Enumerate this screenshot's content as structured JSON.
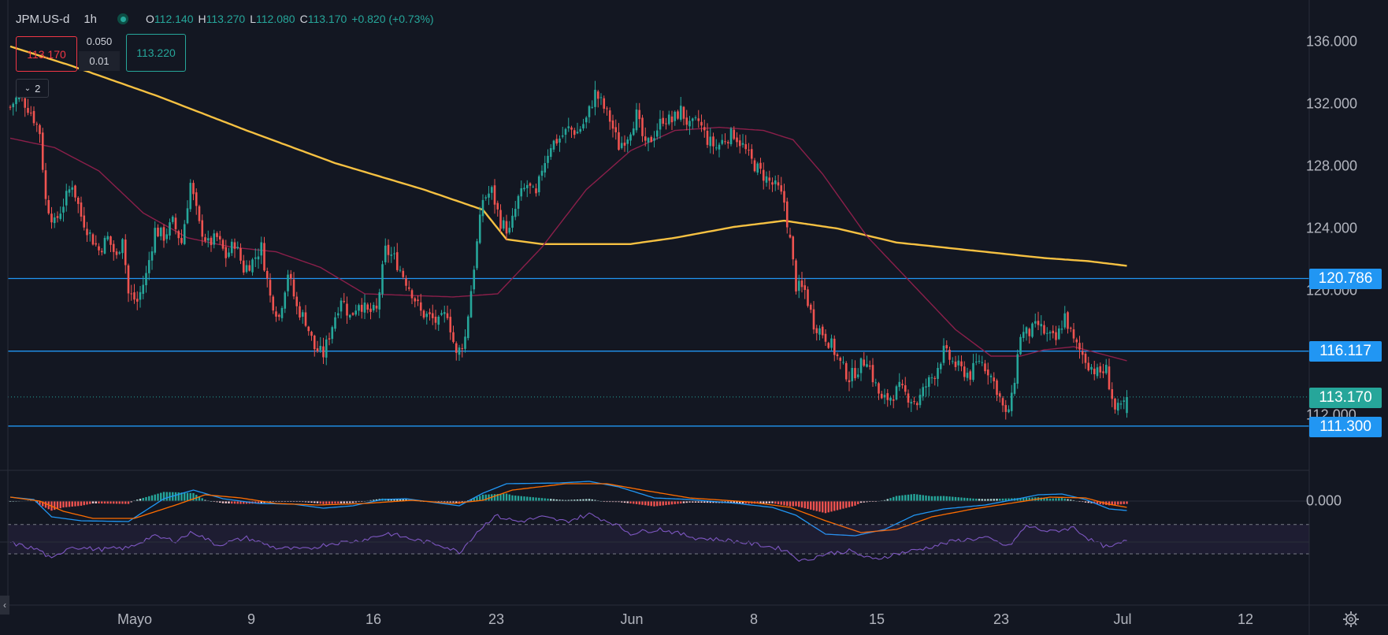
{
  "header": {
    "symbol": "JPM.US-d",
    "timeframe": "1h",
    "ohlc": [
      {
        "k": "O",
        "v": "112.140"
      },
      {
        "k": "H",
        "v": "113.270"
      },
      {
        "k": "L",
        "v": "112.080"
      },
      {
        "k": "C",
        "v": "113.170"
      }
    ],
    "change": "+0.820 (+0.73%)"
  },
  "trade_panel": {
    "sell": "113.170",
    "spread": "0.050",
    "lot": "0.01",
    "buy": "113.220"
  },
  "indicator_toggle": "2",
  "colors": {
    "up": "#26a69a",
    "down": "#ef5350",
    "ma200": "#f6c142",
    "ma50": "#8b1f4a",
    "hline": "#2196f3",
    "macd": "#2196f3",
    "signal": "#ff6d00",
    "rsi": "#7e57c2",
    "bg": "#131722"
  },
  "price_axis": [
    "136.000",
    "132.000",
    "128.000",
    "124.000",
    "120.000",
    "112.000"
  ],
  "level_tags": [
    {
      "label": "120.786",
      "value": 120.786,
      "color": "#2196f3"
    },
    {
      "label": "116.117",
      "value": 116.117,
      "color": "#2196f3"
    },
    {
      "label": "113.170",
      "value": 113.17,
      "color": "#26a69a"
    },
    {
      "label": "111.300",
      "value": 111.3,
      "color": "#2196f3"
    }
  ],
  "macd_axis": "0.000",
  "time_axis": [
    "Mayo",
    "9",
    "16",
    "23",
    "Jun",
    "8",
    "15",
    "23",
    "Jul",
    "12"
  ],
  "chart_data": {
    "type": "candlestick",
    "ylim": [
      108,
      138
    ],
    "horizontal_lines": [
      120.786,
      116.117,
      111.3
    ],
    "last_price": 113.17,
    "close_path": [
      [
        0,
        131.8
      ],
      [
        3,
        132.6
      ],
      [
        7,
        131.5
      ],
      [
        10,
        130.2
      ],
      [
        12,
        125.8
      ],
      [
        15,
        124.3
      ],
      [
        18,
        125.6
      ],
      [
        21,
        126.9
      ],
      [
        24,
        124.8
      ],
      [
        27,
        123.6
      ],
      [
        30,
        122.6
      ],
      [
        33,
        123.4
      ],
      [
        36,
        122.1
      ],
      [
        38,
        123.6
      ],
      [
        40,
        119.8
      ],
      [
        43,
        119.3
      ],
      [
        46,
        121.0
      ],
      [
        49,
        123.9
      ],
      [
        52,
        123.5
      ],
      [
        55,
        124.4
      ],
      [
        58,
        123.1
      ],
      [
        61,
        126.9
      ],
      [
        64,
        124.2
      ],
      [
        67,
        123.0
      ],
      [
        70,
        123.4
      ],
      [
        73,
        122.2
      ],
      [
        76,
        123.1
      ],
      [
        79,
        121.4
      ],
      [
        82,
        121.9
      ],
      [
        85,
        122.8
      ],
      [
        88,
        119.6
      ],
      [
        91,
        118.3
      ],
      [
        94,
        121.2
      ],
      [
        97,
        118.9
      ],
      [
        100,
        118.1
      ],
      [
        103,
        116.3
      ],
      [
        106,
        115.9
      ],
      [
        109,
        117.8
      ],
      [
        112,
        119.6
      ],
      [
        115,
        118.3
      ],
      [
        118,
        119.3
      ],
      [
        121,
        118.6
      ],
      [
        124,
        118.7
      ],
      [
        127,
        122.6
      ],
      [
        130,
        122.1
      ],
      [
        133,
        121.0
      ],
      [
        136,
        119.9
      ],
      [
        139,
        118.6
      ],
      [
        142,
        118.3
      ],
      [
        145,
        117.9
      ],
      [
        148,
        118.6
      ],
      [
        151,
        115.8
      ],
      [
        154,
        117.0
      ],
      [
        157,
        121.6
      ],
      [
        160,
        125.9
      ],
      [
        163,
        126.4
      ],
      [
        166,
        124.4
      ],
      [
        169,
        123.8
      ],
      [
        172,
        125.9
      ],
      [
        175,
        126.8
      ],
      [
        178,
        126.0
      ],
      [
        180,
        127.9
      ],
      [
        183,
        129.4
      ],
      [
        186,
        129.8
      ],
      [
        189,
        130.4
      ],
      [
        192,
        130.2
      ],
      [
        195,
        131.0
      ],
      [
        198,
        132.7
      ],
      [
        200,
        132.1
      ],
      [
        203,
        131.0
      ],
      [
        206,
        129.3
      ],
      [
        209,
        130.0
      ],
      [
        212,
        131.3
      ],
      [
        215,
        129.2
      ],
      [
        218,
        130.1
      ],
      [
        221,
        131.1
      ],
      [
        224,
        130.9
      ],
      [
        227,
        131.6
      ],
      [
        230,
        130.5
      ],
      [
        233,
        130.9
      ],
      [
        236,
        129.7
      ],
      [
        239,
        129.2
      ],
      [
        242,
        129.8
      ],
      [
        245,
        130.1
      ],
      [
        248,
        129.3
      ],
      [
        251,
        128.3
      ],
      [
        254,
        127.6
      ],
      [
        257,
        127.0
      ],
      [
        260,
        126.5
      ],
      [
        262,
        125.7
      ],
      [
        264,
        123.2
      ],
      [
        266,
        120.3
      ],
      [
        269,
        120.0
      ],
      [
        272,
        117.9
      ],
      [
        275,
        117.3
      ],
      [
        278,
        116.5
      ],
      [
        281,
        115.3
      ],
      [
        284,
        114.4
      ],
      [
        287,
        115.0
      ],
      [
        290,
        115.7
      ],
      [
        292,
        114.4
      ],
      [
        295,
        112.9
      ],
      [
        298,
        113.2
      ],
      [
        301,
        113.7
      ],
      [
        304,
        113.2
      ],
      [
        307,
        112.8
      ],
      [
        310,
        113.9
      ],
      [
        313,
        114.7
      ],
      [
        316,
        116.1
      ],
      [
        319,
        115.4
      ],
      [
        322,
        114.9
      ],
      [
        325,
        114.6
      ],
      [
        328,
        115.6
      ],
      [
        331,
        114.9
      ],
      [
        334,
        113.7
      ],
      [
        337,
        111.9
      ],
      [
        339,
        113.0
      ],
      [
        342,
        117.2
      ],
      [
        345,
        117.3
      ],
      [
        348,
        117.8
      ],
      [
        351,
        117.1
      ],
      [
        354,
        116.8
      ],
      [
        357,
        118.4
      ],
      [
        360,
        116.7
      ],
      [
        363,
        115.9
      ],
      [
        365,
        115.3
      ],
      [
        368,
        114.7
      ],
      [
        371,
        114.9
      ],
      [
        374,
        112.3
      ],
      [
        376,
        112.4
      ],
      [
        378,
        113.17
      ]
    ],
    "ma200_path": [
      [
        0,
        135.7
      ],
      [
        20,
        134.5
      ],
      [
        50,
        132.5
      ],
      [
        80,
        130.3
      ],
      [
        110,
        128.2
      ],
      [
        140,
        126.5
      ],
      [
        160,
        125.2
      ],
      [
        168,
        123.3
      ],
      [
        180,
        123.0
      ],
      [
        210,
        123.0
      ],
      [
        225,
        123.4
      ],
      [
        245,
        124.1
      ],
      [
        262,
        124.5
      ],
      [
        280,
        124.0
      ],
      [
        300,
        123.1
      ],
      [
        330,
        122.5
      ],
      [
        350,
        122.1
      ],
      [
        365,
        121.9
      ],
      [
        378,
        121.6
      ]
    ],
    "ma50_path": [
      [
        0,
        129.8
      ],
      [
        15,
        129.2
      ],
      [
        30,
        127.7
      ],
      [
        45,
        125.0
      ],
      [
        60,
        123.4
      ],
      [
        75,
        122.8
      ],
      [
        90,
        122.5
      ],
      [
        105,
        121.5
      ],
      [
        120,
        119.8
      ],
      [
        135,
        119.7
      ],
      [
        150,
        119.6
      ],
      [
        165,
        119.8
      ],
      [
        180,
        122.8
      ],
      [
        195,
        126.5
      ],
      [
        210,
        129.0
      ],
      [
        225,
        130.3
      ],
      [
        240,
        130.5
      ],
      [
        255,
        130.3
      ],
      [
        265,
        129.7
      ],
      [
        275,
        127.5
      ],
      [
        290,
        123.5
      ],
      [
        305,
        120.5
      ],
      [
        320,
        117.5
      ],
      [
        332,
        115.8
      ],
      [
        342,
        115.8
      ],
      [
        350,
        116.2
      ],
      [
        360,
        116.4
      ],
      [
        368,
        116.0
      ],
      [
        378,
        115.5
      ]
    ],
    "macd_path": [
      [
        0,
        0.05
      ],
      [
        8,
        0.02
      ],
      [
        14,
        -0.2
      ],
      [
        24,
        -0.25
      ],
      [
        40,
        -0.26
      ],
      [
        52,
        0.03
      ],
      [
        62,
        0.14
      ],
      [
        72,
        0.03
      ],
      [
        84,
        -0.03
      ],
      [
        96,
        -0.04
      ],
      [
        106,
        -0.09
      ],
      [
        116,
        -0.06
      ],
      [
        126,
        0.02
      ],
      [
        134,
        0.03
      ],
      [
        144,
        -0.02
      ],
      [
        152,
        -0.06
      ],
      [
        160,
        0.1
      ],
      [
        168,
        0.22
      ],
      [
        186,
        0.23
      ],
      [
        196,
        0.25
      ],
      [
        206,
        0.18
      ],
      [
        218,
        0.04
      ],
      [
        230,
        0.02
      ],
      [
        246,
        -0.03
      ],
      [
        258,
        -0.08
      ],
      [
        266,
        -0.18
      ],
      [
        276,
        -0.42
      ],
      [
        286,
        -0.44
      ],
      [
        296,
        -0.36
      ],
      [
        306,
        -0.18
      ],
      [
        316,
        -0.1
      ],
      [
        330,
        -0.05
      ],
      [
        340,
        0.02
      ],
      [
        348,
        0.08
      ],
      [
        356,
        0.09
      ],
      [
        364,
        0.02
      ],
      [
        372,
        -0.1
      ],
      [
        378,
        -0.12
      ]
    ],
    "signal_path": [
      [
        0,
        0.05
      ],
      [
        10,
        0.0
      ],
      [
        18,
        -0.13
      ],
      [
        28,
        -0.22
      ],
      [
        42,
        -0.22
      ],
      [
        56,
        -0.05
      ],
      [
        66,
        0.08
      ],
      [
        78,
        0.04
      ],
      [
        90,
        -0.03
      ],
      [
        104,
        -0.05
      ],
      [
        120,
        -0.03
      ],
      [
        136,
        0.01
      ],
      [
        150,
        -0.03
      ],
      [
        160,
        0.01
      ],
      [
        170,
        0.14
      ],
      [
        188,
        0.22
      ],
      [
        202,
        0.22
      ],
      [
        214,
        0.14
      ],
      [
        230,
        0.04
      ],
      [
        250,
        -0.01
      ],
      [
        264,
        -0.08
      ],
      [
        276,
        -0.25
      ],
      [
        288,
        -0.4
      ],
      [
        300,
        -0.36
      ],
      [
        312,
        -0.2
      ],
      [
        326,
        -0.1
      ],
      [
        340,
        -0.02
      ],
      [
        352,
        0.05
      ],
      [
        364,
        0.04
      ],
      [
        372,
        -0.04
      ],
      [
        378,
        -0.08
      ]
    ],
    "rsi_path": [
      [
        0,
        45
      ],
      [
        10,
        35
      ],
      [
        14,
        22
      ],
      [
        20,
        40
      ],
      [
        30,
        36
      ],
      [
        40,
        38
      ],
      [
        48,
        54
      ],
      [
        56,
        48
      ],
      [
        62,
        60
      ],
      [
        70,
        42
      ],
      [
        80,
        52
      ],
      [
        90,
        38
      ],
      [
        100,
        36
      ],
      [
        108,
        44
      ],
      [
        118,
        48
      ],
      [
        128,
        58
      ],
      [
        136,
        50
      ],
      [
        146,
        42
      ],
      [
        152,
        32
      ],
      [
        158,
        60
      ],
      [
        164,
        82
      ],
      [
        172,
        74
      ],
      [
        180,
        80
      ],
      [
        188,
        74
      ],
      [
        196,
        84
      ],
      [
        204,
        72
      ],
      [
        210,
        58
      ],
      [
        220,
        64
      ],
      [
        232,
        52
      ],
      [
        244,
        48
      ],
      [
        254,
        42
      ],
      [
        262,
        36
      ],
      [
        268,
        20
      ],
      [
        276,
        30
      ],
      [
        284,
        34
      ],
      [
        292,
        22
      ],
      [
        300,
        30
      ],
      [
        310,
        38
      ],
      [
        320,
        48
      ],
      [
        330,
        52
      ],
      [
        338,
        40
      ],
      [
        344,
        68
      ],
      [
        352,
        60
      ],
      [
        360,
        66
      ],
      [
        366,
        48
      ],
      [
        372,
        38
      ],
      [
        378,
        48
      ]
    ]
  }
}
